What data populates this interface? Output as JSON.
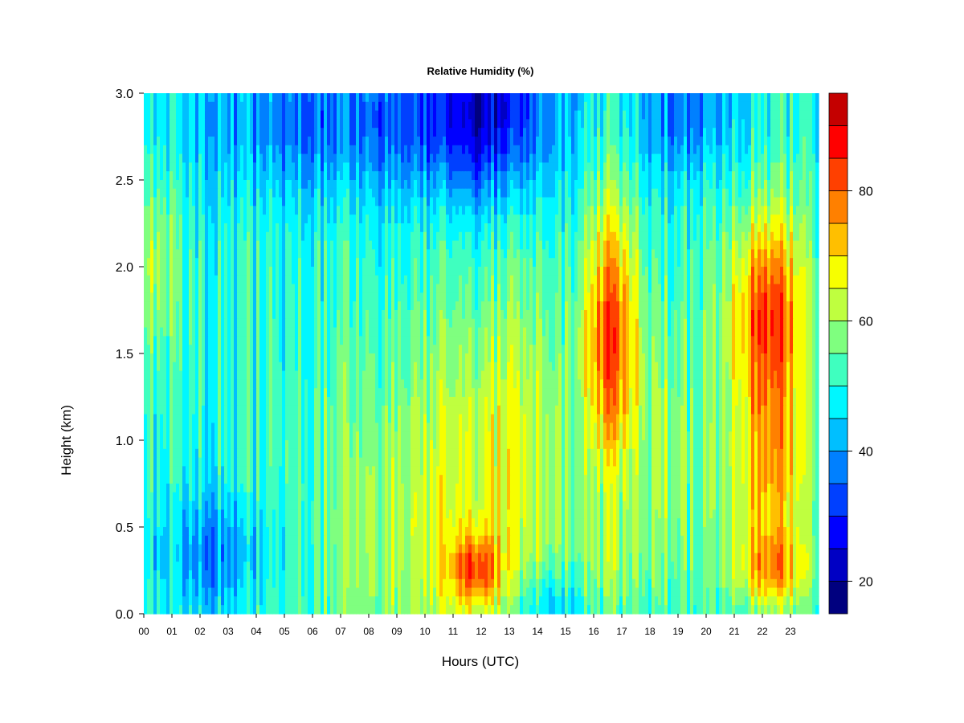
{
  "chart_data": {
    "type": "heatmap",
    "title": "Relative Humidity (%)",
    "xlabel": "Hours (UTC)",
    "ylabel": "Height (km)",
    "x_ticks": [
      "00",
      "01",
      "02",
      "03",
      "04",
      "05",
      "06",
      "07",
      "08",
      "09",
      "10",
      "11",
      "12",
      "13",
      "14",
      "15",
      "16",
      "17",
      "18",
      "19",
      "20",
      "21",
      "22",
      "23"
    ],
    "y_ticks": [
      "0.0",
      "0.5",
      "1.0",
      "1.5",
      "2.0",
      "2.5",
      "3.0"
    ],
    "xlim": [
      0,
      24
    ],
    "ylim": [
      0,
      3.0
    ],
    "colorbar": {
      "ticks": [
        "20",
        "40",
        "60",
        "80"
      ],
      "tick_values": [
        20,
        40,
        60,
        80
      ],
      "range": [
        15,
        95
      ],
      "levels": [
        15,
        20,
        25,
        30,
        35,
        40,
        45,
        50,
        55,
        60,
        65,
        70,
        75,
        80,
        85,
        90,
        95
      ],
      "colors": [
        "#00007f",
        "#0000c4",
        "#0000ff",
        "#0040ff",
        "#0080ff",
        "#00bfff",
        "#00f7ff",
        "#3fffbf",
        "#7fff7f",
        "#bfff3f",
        "#f7ff00",
        "#ffbf00",
        "#ff8000",
        "#ff4000",
        "#ff0000",
        "#c40000",
        "#7f0000"
      ]
    },
    "heights_km": [
      0.0,
      0.1,
      0.2,
      0.3,
      0.4,
      0.5,
      0.6,
      0.7,
      0.8,
      0.9,
      1.0,
      1.1,
      1.2,
      1.3,
      1.4,
      1.5,
      1.6,
      1.7,
      1.8,
      1.9,
      2.0,
      2.1,
      2.2,
      2.3,
      2.4,
      2.5,
      2.6,
      2.7,
      2.8,
      2.9
    ],
    "hours_utc": [
      0.25,
      0.75,
      1.25,
      1.75,
      2.25,
      2.75,
      3.25,
      3.75,
      4.25,
      4.75,
      5.25,
      5.75,
      6.25,
      6.75,
      7.25,
      7.75,
      8.25,
      8.75,
      9.25,
      9.75,
      10.25,
      10.75,
      11.25,
      11.75,
      12.25,
      12.75,
      13.25,
      13.75,
      14.25,
      14.75,
      15.25,
      15.75,
      16.25,
      16.75,
      17.25,
      17.75,
      18.25,
      18.75,
      19.25,
      19.75,
      20.25,
      20.75,
      21.25,
      21.75,
      22.25,
      22.75,
      23.25,
      23.75
    ],
    "key_points_rh_percent": [
      {
        "hour": 0.5,
        "height_km": 2.0,
        "rh": 70
      },
      {
        "hour": 2.5,
        "height_km": 0.3,
        "rh": 38
      },
      {
        "hour": 5.0,
        "height_km": 2.9,
        "rh": 30
      },
      {
        "hour": 11.8,
        "height_km": 0.25,
        "rh": 80
      },
      {
        "hour": 12.0,
        "height_km": 2.9,
        "rh": 22
      },
      {
        "hour": 16.5,
        "height_km": 1.8,
        "rh": 82
      },
      {
        "hour": 16.5,
        "height_km": 1.1,
        "rh": 80
      },
      {
        "hour": 19.5,
        "height_km": 2.8,
        "rh": 30
      },
      {
        "hour": 22.0,
        "height_km": 1.8,
        "rh": 84
      },
      {
        "hour": 22.5,
        "height_km": 0.25,
        "rh": 72
      }
    ]
  }
}
